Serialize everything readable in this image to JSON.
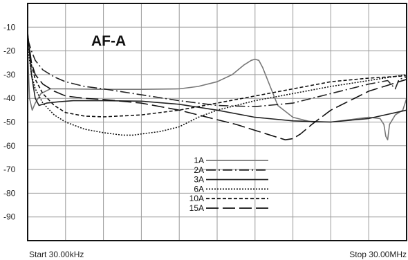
{
  "chart_data": {
    "type": "line",
    "title": "AF-A",
    "start_label": "Start 30.00kHz",
    "stop_label": "Stop 30.00MHz",
    "ylim": [
      0,
      -100
    ],
    "yticks": [
      -10,
      -20,
      -30,
      -40,
      -50,
      -60,
      -70,
      -80,
      -90
    ],
    "xlim": [
      0,
      1
    ],
    "grid": true,
    "legend_position": "bottom-center",
    "series": [
      {
        "name": "1A",
        "color": "#777777",
        "dash": "",
        "x": [
          0.0,
          0.005,
          0.012,
          0.02,
          0.035,
          0.06,
          0.1,
          0.2,
          0.3,
          0.4,
          0.45,
          0.5,
          0.54,
          0.57,
          0.59,
          0.6,
          0.61,
          0.62,
          0.64,
          0.66,
          0.7,
          0.75,
          0.8,
          0.85,
          0.9,
          0.93,
          0.94,
          0.945,
          0.95,
          0.955,
          0.97,
          0.99,
          1.0
        ],
        "y": [
          -20,
          -40,
          -45,
          -42,
          -38,
          -36,
          -36,
          -36.2,
          -36.2,
          -36,
          -35,
          -33,
          -30,
          -26,
          -24,
          -23.5,
          -24,
          -27,
          -35,
          -43,
          -48,
          -50,
          -50,
          -49,
          -48,
          -48.5,
          -51,
          -56,
          -57.5,
          -51,
          -47,
          -45,
          -40
        ]
      },
      {
        "name": "2A",
        "color": "#222222",
        "dash": "14 4 2 4",
        "x": [
          0.0,
          0.01,
          0.02,
          0.04,
          0.07,
          0.1,
          0.15,
          0.2,
          0.3,
          0.4,
          0.5,
          0.6,
          0.7,
          0.8,
          0.85,
          0.9,
          0.95,
          0.97,
          0.98,
          1.0
        ],
        "y": [
          -15,
          -20,
          -24,
          -28,
          -31,
          -33,
          -35,
          -36,
          -38.5,
          -41,
          -43,
          -43.5,
          -42,
          -38,
          -36,
          -34,
          -32.5,
          -36,
          -32,
          -31
        ]
      },
      {
        "name": "3A",
        "color": "#222222",
        "dash": "",
        "x": [
          0.0,
          0.01,
          0.02,
          0.03,
          0.05,
          0.08,
          0.12,
          0.2,
          0.3,
          0.4,
          0.5,
          0.6,
          0.7,
          0.8,
          0.9,
          1.0
        ],
        "y": [
          -12,
          -30,
          -40,
          -43,
          -42,
          -41.5,
          -41,
          -41,
          -41.2,
          -42.5,
          -45,
          -48,
          -49.5,
          -50,
          -48.5,
          -45
        ]
      },
      {
        "name": "6A",
        "color": "#111111",
        "dash": "2 2",
        "x": [
          0.0,
          0.01,
          0.02,
          0.04,
          0.07,
          0.1,
          0.15,
          0.2,
          0.25,
          0.28,
          0.3,
          0.35,
          0.4,
          0.45,
          0.5,
          0.6,
          0.7,
          0.8,
          0.9,
          1.0
        ],
        "y": [
          -18,
          -30,
          -36,
          -42,
          -47,
          -50,
          -53,
          -54.5,
          -55.5,
          -55.5,
          -55,
          -54,
          -52,
          -48,
          -45,
          -41,
          -38,
          -35,
          -32.5,
          -30
        ]
      },
      {
        "name": "10A",
        "color": "#111111",
        "dash": "5 3",
        "x": [
          0.0,
          0.01,
          0.02,
          0.04,
          0.07,
          0.1,
          0.15,
          0.2,
          0.3,
          0.4,
          0.5,
          0.6,
          0.7,
          0.8,
          0.9,
          1.0
        ],
        "y": [
          -14,
          -26,
          -32,
          -38,
          -43,
          -46,
          -47.5,
          -47.8,
          -47,
          -45,
          -42,
          -39,
          -36,
          -33,
          -31.5,
          -30.5
        ]
      },
      {
        "name": "15A",
        "color": "#111111",
        "dash": "18 6",
        "x": [
          0.0,
          0.01,
          0.02,
          0.04,
          0.07,
          0.1,
          0.15,
          0.2,
          0.3,
          0.4,
          0.5,
          0.55,
          0.6,
          0.65,
          0.68,
          0.7,
          0.72,
          0.75,
          0.8,
          0.9,
          1.0
        ],
        "y": [
          -13,
          -25,
          -30,
          -34,
          -37,
          -39,
          -40,
          -40.5,
          -42,
          -45,
          -49,
          -51,
          -53.5,
          -56,
          -57.5,
          -57,
          -55,
          -51,
          -45,
          -37,
          -32
        ]
      }
    ]
  }
}
